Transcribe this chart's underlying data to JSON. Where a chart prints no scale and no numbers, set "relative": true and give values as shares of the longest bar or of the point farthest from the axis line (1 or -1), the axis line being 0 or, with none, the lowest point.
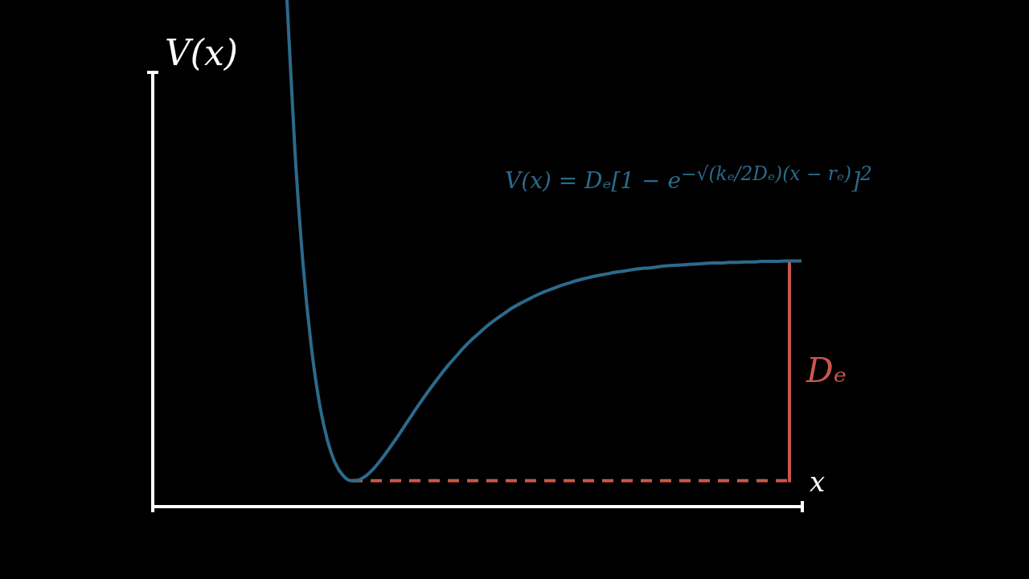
{
  "chart_data": {
    "type": "line",
    "relative": true,
    "color": "#2c6a8c",
    "marker": "none",
    "categories": [
      null,
      null,
      null,
      null,
      null,
      null,
      null,
      null,
      null,
      null,
      null,
      null,
      null,
      null,
      null,
      null,
      null,
      null,
      null,
      null,
      null,
      null,
      null,
      null,
      null,
      null,
      null,
      null,
      null,
      null,
      null,
      null,
      null,
      null,
      null,
      null,
      null,
      null,
      null,
      null,
      null,
      null,
      null,
      null,
      null,
      null,
      null,
      null,
      null,
      null,
      null,
      null,
      null,
      null,
      null,
      null,
      null,
      null,
      null,
      null,
      null,
      null,
      null,
      null,
      null
    ],
    "values": [
      1,
      0.699,
      0.478,
      0.319,
      0.207,
      0.133,
      0.086,
      0.061,
      0.051,
      0.053,
      0.063,
      0.079,
      0.099,
      0.121,
      0.144,
      0.168,
      0.192,
      0.215,
      0.237,
      0.258,
      0.278,
      0.296,
      0.314,
      0.33,
      0.344,
      0.358,
      0.37,
      0.381,
      0.392,
      0.401,
      0.409,
      0.417,
      0.424,
      0.43,
      0.436,
      0.441,
      0.446,
      0.45,
      0.454,
      0.457,
      0.46,
      0.463,
      0.465,
      0.468,
      0.47,
      0.471,
      0.473,
      0.475,
      0.476,
      0.477,
      0.478,
      0.479,
      0.48,
      0.481,
      0.481,
      0.482,
      0.482,
      0.483,
      0.483,
      0.484,
      0.484,
      0.484,
      0.485,
      0.485,
      0.485
    ],
    "ylabel": "V(x)",
    "xlabel": "x",
    "annotations": [
      "V(x) = Dₑ[1 − e$^{−√(kₑ/2Dₑ)(x − rₑ)}$]$^{2}$",
      "Dₑ"
    ],
    "ref_lines": [
      {
        "axis": "y",
        "value": 0.051,
        "color": "#c9574b",
        "line_style": "dashed"
      }
    ]
  }
}
